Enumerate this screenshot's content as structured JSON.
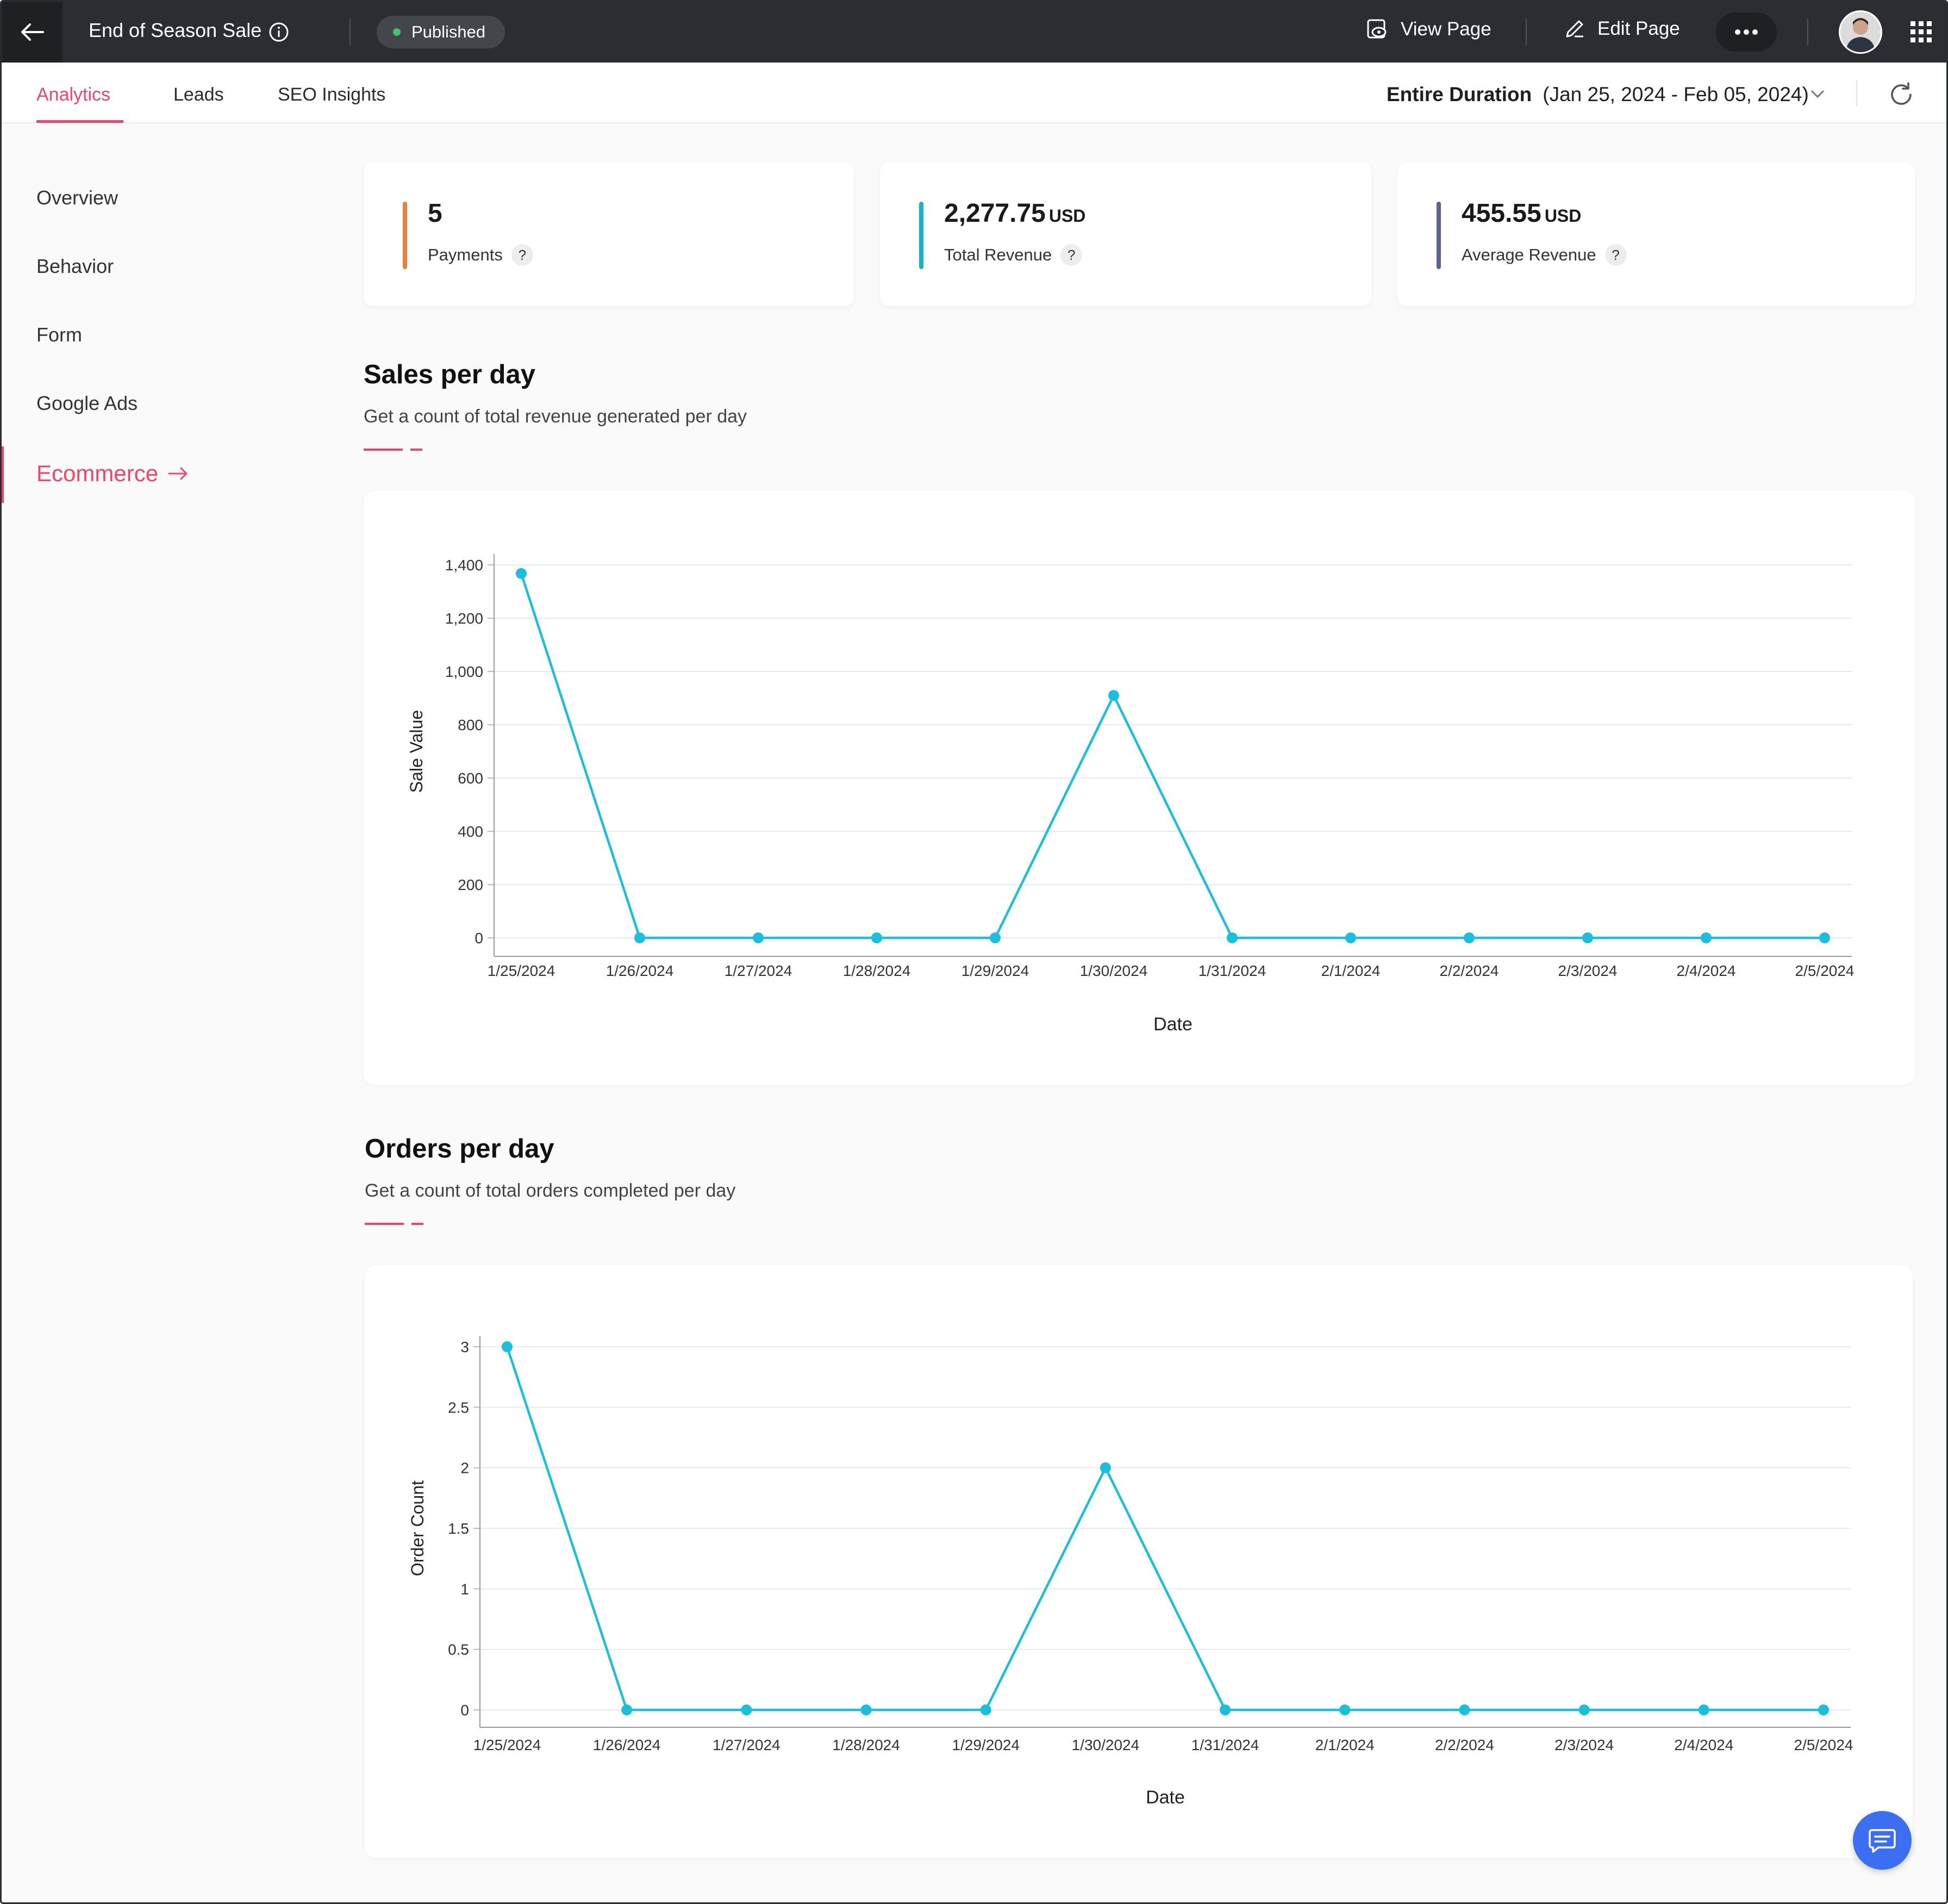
{
  "topbar": {
    "title": "End of Season Sale",
    "status": "Published",
    "view_page": "View Page",
    "edit_page": "Edit Page"
  },
  "tabs": [
    {
      "label": "Analytics",
      "active": true
    },
    {
      "label": "Leads",
      "active": false
    },
    {
      "label": "SEO Insights",
      "active": false
    }
  ],
  "duration": {
    "label": "Entire Duration",
    "range": "(Jan 25, 2024 - Feb 05, 2024)"
  },
  "sidebar": {
    "items": [
      {
        "label": "Overview"
      },
      {
        "label": "Behavior"
      },
      {
        "label": "Form"
      },
      {
        "label": "Google Ads"
      },
      {
        "label": "Ecommerce",
        "active": true
      }
    ]
  },
  "stats": [
    {
      "value": "5",
      "unit": "",
      "label": "Payments",
      "color": "#ef7d3c"
    },
    {
      "value": "2,277.75",
      "unit": "USD",
      "label": "Total Revenue",
      "color": "#12b5c9"
    },
    {
      "value": "455.55",
      "unit": "USD",
      "label": "Average Revenue",
      "color": "#5a648c"
    }
  ],
  "sections": {
    "sales": {
      "title": "Sales per day",
      "subtitle": "Get a count of total revenue generated per day"
    },
    "orders": {
      "title": "Orders per day",
      "subtitle": "Get a count of total orders completed per day"
    }
  },
  "colors": {
    "accent": "#f0456b",
    "series": "#19c0dd",
    "topbar": "#2c2d33"
  },
  "chart_data": [
    {
      "type": "line",
      "title": "",
      "xlabel": "Date",
      "ylabel": "Sale Value",
      "categories": [
        "1/25/2024",
        "1/26/2024",
        "1/27/2024",
        "1/28/2024",
        "1/29/2024",
        "1/30/2024",
        "1/31/2024",
        "2/1/2024",
        "2/2/2024",
        "2/3/2024",
        "2/4/2024",
        "2/5/2024"
      ],
      "values": [
        1367.75,
        0,
        0,
        0,
        0,
        910,
        0,
        0,
        0,
        0,
        0,
        0
      ],
      "ylim": [
        0,
        1400
      ],
      "yticks": [
        "0",
        "200",
        "400",
        "600",
        "800",
        "1,000",
        "1,200",
        "1,400"
      ],
      "grid": true
    },
    {
      "type": "line",
      "title": "",
      "xlabel": "Date",
      "ylabel": "Order Count",
      "categories": [
        "1/25/2024",
        "1/26/2024",
        "1/27/2024",
        "1/28/2024",
        "1/29/2024",
        "1/30/2024",
        "1/31/2024",
        "2/1/2024",
        "2/2/2024",
        "2/3/2024",
        "2/4/2024",
        "2/5/2024"
      ],
      "values": [
        3,
        0,
        0,
        0,
        0,
        2,
        0,
        0,
        0,
        0,
        0,
        0
      ],
      "ylim": [
        0,
        3
      ],
      "yticks": [
        "0",
        "0.5",
        "1",
        "1.5",
        "2",
        "2.5",
        "3"
      ],
      "grid": true
    }
  ]
}
